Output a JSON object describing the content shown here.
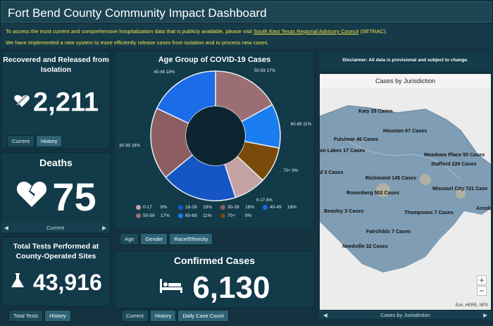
{
  "header": {
    "title": "Fort Bend County Community Impact Dashboard",
    "notice_line1_pre": "To access the most current and comprehensive hospitalization data that is publicly available, please visit ",
    "notice_link": "South East Texas Regional Advisory Council",
    "notice_line1_post": " (SETRAC).",
    "notice_line2": "We have implemented a new system to more efficiently release cases from isolation and to process new cases."
  },
  "recovered": {
    "title": "Recovered and Released from Isolation",
    "value": "2,211",
    "tabs": [
      "Current",
      "History"
    ]
  },
  "deaths": {
    "title": "Deaths",
    "value": "75",
    "nav_label": "Current",
    "prev": "◀",
    "next": "▶"
  },
  "tests": {
    "title": "Total Tests Performed at County-Operated Sites",
    "value": "43,916",
    "tabs": [
      "Total Tests",
      "History"
    ]
  },
  "age_chart": {
    "title": "Age Group of COVID-19 Cases",
    "tabs": [
      "Age",
      "Gender",
      "Race/Ethnicity"
    ],
    "slice_labels": [
      "50-59 17%",
      "60-69 11%",
      "70+ 9%",
      "0-17 8%",
      "18-29 19%",
      "30-39 18%",
      "40-49 18%"
    ],
    "legend": [
      {
        "name": "0-17",
        "pct": "8%"
      },
      {
        "name": "18-29",
        "pct": "19%"
      },
      {
        "name": "30-39",
        "pct": "18%"
      },
      {
        "name": "40-49",
        "pct": "18%"
      },
      {
        "name": "50-59",
        "pct": "17%"
      },
      {
        "name": "60-69",
        "pct": "11%"
      },
      {
        "name": "70+",
        "pct": "9%"
      }
    ]
  },
  "chart_data": {
    "type": "pie",
    "title": "Age Group of COVID-19 Cases",
    "categories": [
      "0-17",
      "18-29",
      "30-39",
      "40-49",
      "50-59",
      "60-69",
      "70+"
    ],
    "values": [
      8,
      19,
      18,
      18,
      17,
      11,
      9
    ],
    "colors": {
      "0-17": "#c4a2a4",
      "18-29": "#1656c4",
      "30-39": "#8c5e62",
      "40-49": "#1a6ce8",
      "50-59": "#9a6e72",
      "60-69": "#1a7df0",
      "70+": "#7a4a0a"
    },
    "legend_placement": "bottom"
  },
  "confirmed": {
    "title": "Confirmed Cases",
    "value": "6,130",
    "tabs": [
      "Current",
      "History",
      "Daily Case Count"
    ]
  },
  "map": {
    "disclaimer": "Disclaimer: All data is provisional and subject to change.",
    "title": "Cases by Jurisdiction",
    "labels": [
      "Katy 28 Cases",
      "Houston 67 Cases",
      "Fulshear 46 Cases",
      "on Lakes 17 Cases",
      "Meadows Place 50 Cases",
      "Stafford 226 Cases",
      "d 3 Cases",
      "Richmond 145 Cases",
      "Rosenberg 502 Cases",
      "Missouri City 721 Case",
      "Beasley 3 Cases",
      "Thompsons 7 Cases",
      "Arcola 1",
      "Fairchilds 7 Cases",
      "Needville 32 Cases"
    ],
    "zoom_in": "+",
    "zoom_out": "−",
    "attribution": "Esri, HERE, NPS",
    "nav_label": "Cases by Jurisdiction",
    "prev": "◀",
    "next": "▶"
  },
  "colors": {
    "background": "#14323f",
    "panel": "#123a49",
    "notice_text": "#f4e34a",
    "map_region": "#7f9db4"
  }
}
